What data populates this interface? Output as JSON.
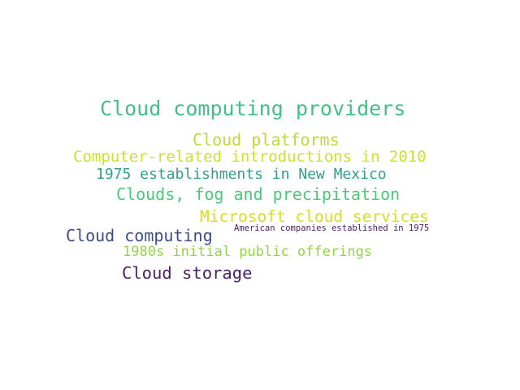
{
  "words": [
    {
      "text": "Cloud computing providers",
      "color": "#43bf86"
    },
    {
      "text": "Cloud platforms",
      "color": "#bfd93a"
    },
    {
      "text": "Computer-related introductions in 2010",
      "color": "#cde22e"
    },
    {
      "text": "1975 establishments in New Mexico",
      "color": "#2fa18a"
    },
    {
      "text": "Clouds, fog and precipitation",
      "color": "#4ec77a"
    },
    {
      "text": "Microsoft cloud services",
      "color": "#d3e11f"
    },
    {
      "text": "Cloud computing",
      "color": "#3d4a8a"
    },
    {
      "text": "American companies established in 1975",
      "color": "#4b1a63"
    },
    {
      "text": "1980s initial public offerings",
      "color": "#93d444"
    },
    {
      "text": "Cloud storage",
      "color": "#4e1d67"
    }
  ]
}
